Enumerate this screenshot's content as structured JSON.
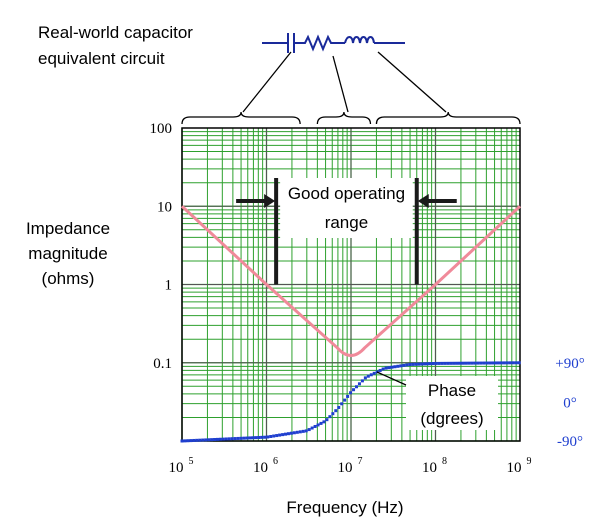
{
  "chart_data": {
    "type": "line",
    "title": "",
    "xlabel": "Frequency (Hz)",
    "ylabel": [
      "Impedance",
      "magnitude",
      "(ohms)"
    ],
    "x_scale": "log",
    "y_scale": "log",
    "xlim": [
      100000,
      1000000000
    ],
    "ylim": [
      0.01,
      100
    ],
    "grid": true,
    "x_tick_labels": [
      {
        "value": 100000,
        "base": "10",
        "exp": "5"
      },
      {
        "value": 1000000,
        "base": "10",
        "exp": "6"
      },
      {
        "value": 10000000,
        "base": "10",
        "exp": "7"
      },
      {
        "value": 100000000,
        "base": "10",
        "exp": "8"
      },
      {
        "value": 1000000000,
        "base": "10",
        "exp": "9"
      }
    ],
    "y_tick_labels": [
      {
        "value": 100,
        "label": "100"
      },
      {
        "value": 10,
        "label": "10"
      },
      {
        "value": 1,
        "label": "1"
      },
      {
        "value": 0.1,
        "label": "0.1"
      }
    ],
    "right_axis": {
      "labels": [
        {
          "value_on_left_axis": 0.1,
          "label": "+90°"
        },
        {
          "value_on_left_axis": 0.031,
          "label": "0°"
        },
        {
          "value_on_left_axis": 0.01,
          "label": "-90°"
        }
      ],
      "color": "#1f3fcf"
    },
    "series": [
      {
        "name": "",
        "kind": "impedance",
        "color": "#f08a9a",
        "style": "solid",
        "points": [
          [
            100000,
            10
          ],
          [
            1000000,
            1
          ],
          [
            10000000,
            0.11
          ],
          [
            100000000,
            1
          ],
          [
            1000000000,
            10
          ]
        ]
      },
      {
        "name": "Phase (dgrees)",
        "kind": "phase",
        "color": "#1f3fcf",
        "style": "dotted",
        "points": [
          [
            100000,
            0.01
          ],
          [
            1000000,
            0.0112
          ],
          [
            3000000,
            0.0135
          ],
          [
            5000000,
            0.018
          ],
          [
            7000000,
            0.026
          ],
          [
            10000000,
            0.042
          ],
          [
            15000000,
            0.065
          ],
          [
            25000000,
            0.085
          ],
          [
            50000000,
            0.095
          ],
          [
            100000000,
            0.098
          ],
          [
            1000000000,
            0.1
          ]
        ]
      }
    ],
    "annotations": {
      "operating_range": {
        "text": [
          "Good operating",
          "range"
        ],
        "left_marker_x": 1300000,
        "right_marker_x": 60000000
      },
      "phase_label": [
        "Phase",
        "(dgrees)"
      ]
    },
    "circuit": {
      "caption": [
        "Real-world capacitor",
        "equivalent circuit"
      ],
      "brace_ranges": [
        [
          100000,
          2500000
        ],
        [
          4000000,
          17000000
        ],
        [
          20000000,
          1000000000
        ]
      ]
    }
  },
  "colors": {
    "grid": "#2ea02e",
    "impedance": "#f08a9a",
    "phase": "#1f3fcf",
    "circuit": "#1a2a9a",
    "text": "#000000"
  }
}
